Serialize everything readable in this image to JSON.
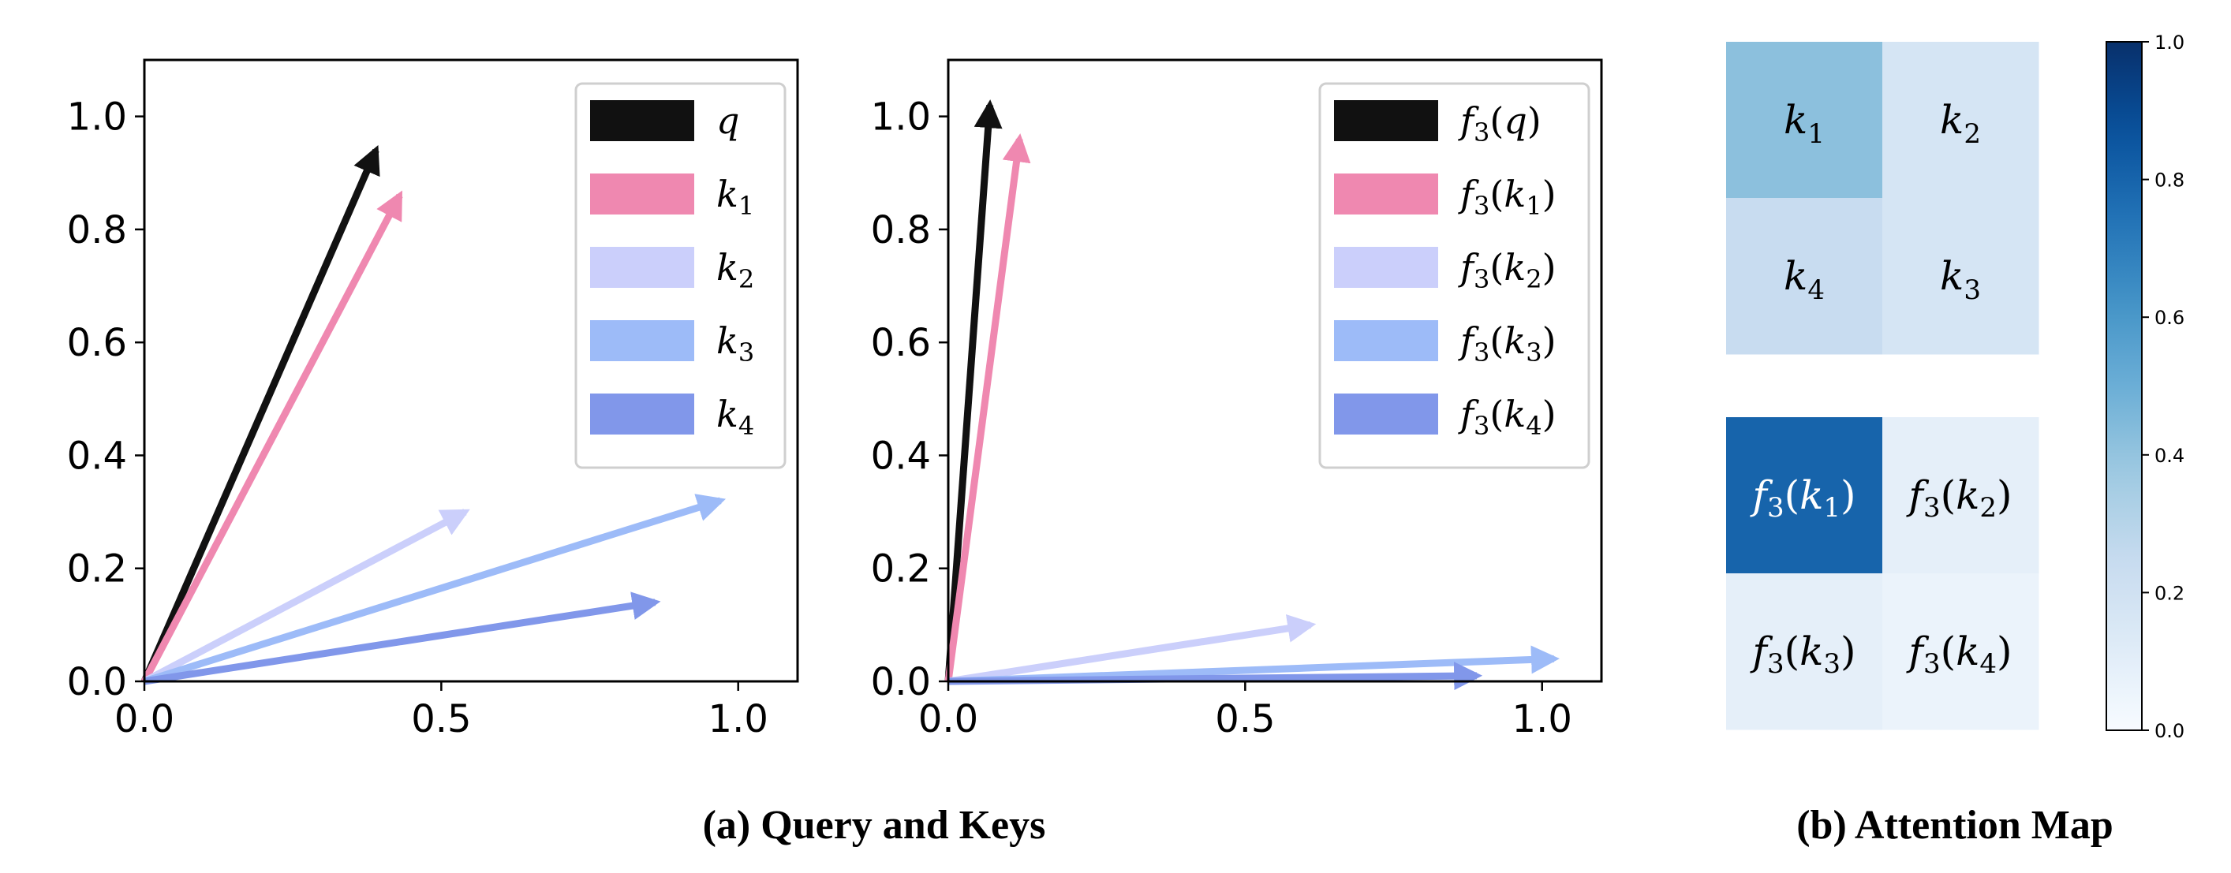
{
  "chart_data": [
    {
      "type": "line",
      "subtype": "vector-arrows",
      "xlim": [
        0.0,
        1.1
      ],
      "ylim": [
        0.0,
        1.1
      ],
      "xticks": [
        "0.0",
        "0.5",
        "1.0"
      ],
      "yticks": [
        "0.0",
        "0.2",
        "0.4",
        "0.6",
        "0.8",
        "1.0"
      ],
      "legend_position": "top-right",
      "series": [
        {
          "name": "q",
          "base": "q",
          "sub": "",
          "x": 0.39,
          "y": 0.94,
          "color": "#111111"
        },
        {
          "name": "k1",
          "base": "k",
          "sub": "1",
          "x": 0.43,
          "y": 0.86,
          "color": "#ef88b0"
        },
        {
          "name": "k2",
          "base": "k",
          "sub": "2",
          "x": 0.54,
          "y": 0.3,
          "color": "#cbcffb"
        },
        {
          "name": "k3",
          "base": "k",
          "sub": "3",
          "x": 0.97,
          "y": 0.32,
          "color": "#9dbbf8"
        },
        {
          "name": "k4",
          "base": "k",
          "sub": "4",
          "x": 0.86,
          "y": 0.14,
          "color": "#8197ea"
        }
      ]
    },
    {
      "type": "line",
      "subtype": "vector-arrows",
      "xlim": [
        0.0,
        1.1
      ],
      "ylim": [
        0.0,
        1.1
      ],
      "xticks": [
        "0.0",
        "0.5",
        "1.0"
      ],
      "yticks": [
        "0.0",
        "0.2",
        "0.4",
        "0.6",
        "0.8",
        "1.0"
      ],
      "legend_position": "top-right",
      "series": [
        {
          "name": "f3(q)",
          "base": "q",
          "sub": "",
          "x": 0.07,
          "y": 1.02,
          "color": "#111111"
        },
        {
          "name": "f3(k1)",
          "base": "k",
          "sub": "1",
          "x": 0.12,
          "y": 0.96,
          "color": "#ef88b0"
        },
        {
          "name": "f3(k2)",
          "base": "k",
          "sub": "2",
          "x": 0.61,
          "y": 0.1,
          "color": "#cbcffb"
        },
        {
          "name": "f3(k3)",
          "base": "k",
          "sub": "3",
          "x": 1.02,
          "y": 0.04,
          "color": "#9dbbf8"
        },
        {
          "name": "f3(k4)",
          "base": "k",
          "sub": "4",
          "x": 0.89,
          "y": 0.01,
          "color": "#8197ea"
        }
      ]
    },
    {
      "type": "heatmap",
      "title": "Attention Map",
      "colormap": "Blues",
      "vmin": 0.0,
      "vmax": 1.0,
      "colorbar_ticks": [
        "0.0",
        "0.2",
        "0.4",
        "0.6",
        "0.8",
        "1.0"
      ],
      "grids": [
        {
          "name": "original",
          "cells": [
            [
              {
                "label": "k1",
                "base": "k",
                "sub": "1",
                "fn": false,
                "value": 0.42
              },
              {
                "label": "k2",
                "base": "k",
                "sub": "2",
                "fn": false,
                "value": 0.17
              }
            ],
            [
              {
                "label": "k4",
                "base": "k",
                "sub": "4",
                "fn": false,
                "value": 0.24
              },
              {
                "label": "k3",
                "base": "k",
                "sub": "3",
                "fn": false,
                "value": 0.17
              }
            ]
          ]
        },
        {
          "name": "transformed",
          "cells": [
            [
              {
                "label": "f3(k1)",
                "base": "k",
                "sub": "1",
                "fn": true,
                "value": 0.8
              },
              {
                "label": "f3(k2)",
                "base": "k",
                "sub": "2",
                "fn": true,
                "value": 0.09
              }
            ],
            [
              {
                "label": "f3(k3)",
                "base": "k",
                "sub": "3",
                "fn": true,
                "value": 0.09
              },
              {
                "label": "f3(k4)",
                "base": "k",
                "sub": "4",
                "fn": true,
                "value": 0.06
              }
            ]
          ]
        }
      ]
    }
  ],
  "captions": {
    "a": "(a) Query and Keys",
    "b": "(b) Attention Map"
  }
}
